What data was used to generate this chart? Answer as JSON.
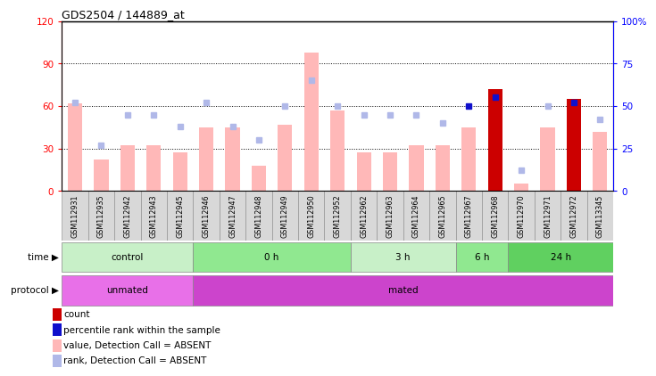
{
  "title": "GDS2504 / 144889_at",
  "samples": [
    "GSM112931",
    "GSM112935",
    "GSM112942",
    "GSM112943",
    "GSM112945",
    "GSM112946",
    "GSM112947",
    "GSM112948",
    "GSM112949",
    "GSM112950",
    "GSM112952",
    "GSM112962",
    "GSM112963",
    "GSM112964",
    "GSM112965",
    "GSM112967",
    "GSM112968",
    "GSM112970",
    "GSM112971",
    "GSM112972",
    "GSM113345"
  ],
  "bar_values": [
    62,
    22,
    32,
    32,
    27,
    45,
    45,
    18,
    47,
    98,
    57,
    27,
    27,
    32,
    32,
    45,
    72,
    5,
    45,
    65,
    42
  ],
  "bar_colors_red": [
    false,
    false,
    false,
    false,
    false,
    false,
    false,
    false,
    false,
    false,
    false,
    false,
    false,
    false,
    false,
    false,
    true,
    false,
    false,
    true,
    false
  ],
  "rank_dots": [
    52,
    27,
    45,
    45,
    38,
    52,
    38,
    30,
    50,
    65,
    50,
    45,
    45,
    45,
    40,
    50,
    55,
    12,
    50,
    52,
    42
  ],
  "rank_dot_dark": [
    false,
    false,
    false,
    false,
    false,
    false,
    false,
    false,
    false,
    false,
    false,
    false,
    false,
    false,
    false,
    true,
    true,
    false,
    false,
    true,
    false
  ],
  "time_groups": [
    {
      "label": "control",
      "start": 0,
      "end": 5,
      "color": "#c8f0c8"
    },
    {
      "label": "0 h",
      "start": 5,
      "end": 11,
      "color": "#90e890"
    },
    {
      "label": "3 h",
      "start": 11,
      "end": 15,
      "color": "#c8f0c8"
    },
    {
      "label": "6 h",
      "start": 15,
      "end": 17,
      "color": "#90e890"
    },
    {
      "label": "24 h",
      "start": 17,
      "end": 21,
      "color": "#60d060"
    }
  ],
  "protocol_groups": [
    {
      "label": "unmated",
      "start": 0,
      "end": 5,
      "color": "#e870e8"
    },
    {
      "label": "mated",
      "start": 5,
      "end": 21,
      "color": "#cc44cc"
    }
  ],
  "ylim_left": [
    0,
    120
  ],
  "ylim_right": [
    0,
    100
  ],
  "yticks_left": [
    0,
    30,
    60,
    90,
    120
  ],
  "yticks_right": [
    0,
    25,
    50,
    75,
    100
  ],
  "ytick_labels_left": [
    "0",
    "30",
    "60",
    "90",
    "120"
  ],
  "ytick_labels_right": [
    "0",
    "25",
    "50",
    "75",
    "100%"
  ],
  "bar_color_absent": "#ffb8b8",
  "bar_color_present": "#cc0000",
  "rank_color_absent": "#b0b8e8",
  "rank_color_present": "#1010cc",
  "legend_items": [
    {
      "label": "count",
      "color": "#cc0000"
    },
    {
      "label": "percentile rank within the sample",
      "color": "#1010cc"
    },
    {
      "label": "value, Detection Call = ABSENT",
      "color": "#ffb8b8"
    },
    {
      "label": "rank, Detection Call = ABSENT",
      "color": "#b0b8e8"
    }
  ]
}
